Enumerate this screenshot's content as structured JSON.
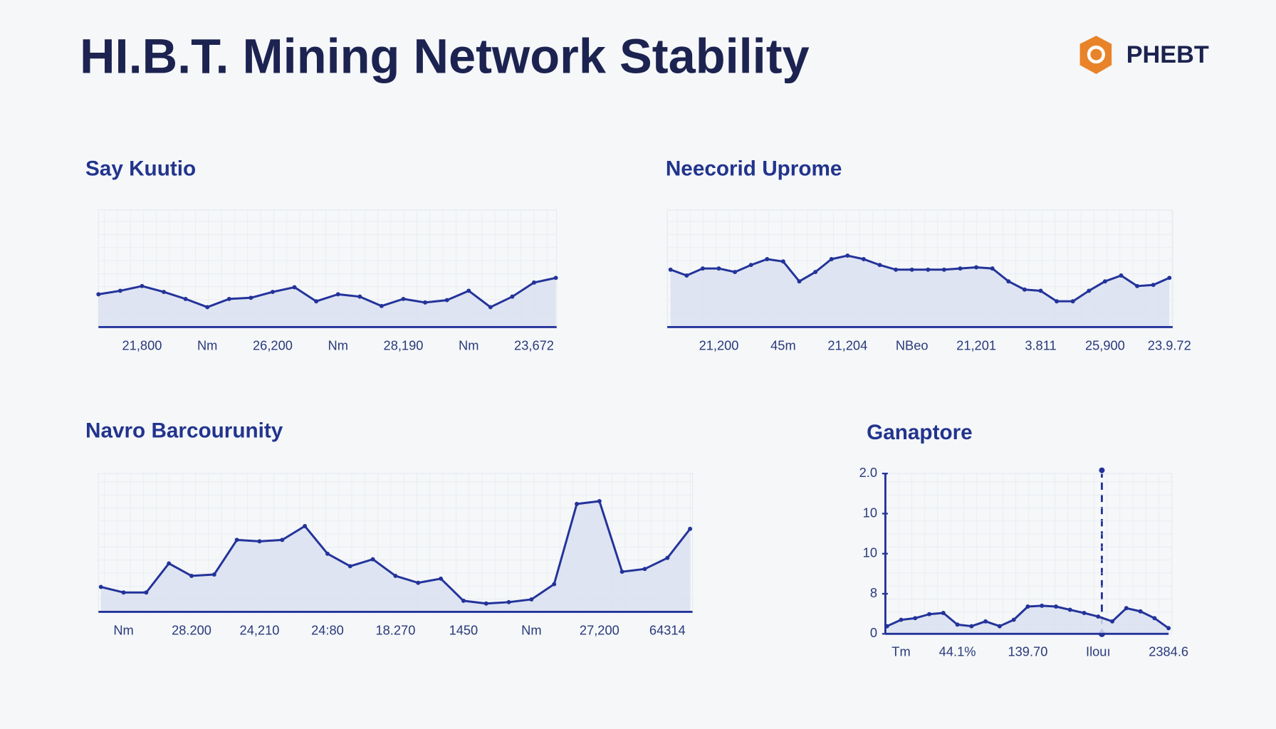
{
  "header": {
    "title": "HI.B.T. Mining Network Stability",
    "logo": "PHEBT"
  },
  "chart_data": [
    {
      "type": "area",
      "title": "Say Kuutio",
      "color": "#23339a",
      "grid": true,
      "ylim": [
        0,
        100
      ],
      "categories": [
        null,
        null,
        "21,800",
        null,
        null,
        "Nm",
        null,
        null,
        "26,200",
        null,
        null,
        "Nm",
        null,
        null,
        "28,190",
        null,
        null,
        "Nm",
        null,
        null,
        "23,672",
        null
      ],
      "values": [
        28,
        31,
        35,
        30,
        24,
        17,
        24,
        25,
        30,
        34,
        22,
        28,
        26,
        18,
        24,
        21,
        23,
        31,
        17,
        26,
        38,
        42
      ]
    },
    {
      "type": "area",
      "title": "Neecorid Uprome",
      "color": "#23339a",
      "grid": true,
      "ylim": [
        0,
        100
      ],
      "categories": [
        null,
        null,
        null,
        "21,200",
        null,
        null,
        null,
        "45m",
        null,
        null,
        null,
        "21,204",
        null,
        null,
        null,
        "NBeo",
        null,
        null,
        null,
        "21,201",
        null,
        null,
        null,
        "3.811",
        null,
        null,
        null,
        "25,900",
        null,
        null,
        null,
        "23.9.72"
      ],
      "values": [
        49,
        44,
        50,
        50,
        47,
        53,
        58,
        56,
        39,
        47,
        58,
        61,
        58,
        53,
        49,
        49,
        49,
        49,
        50,
        51,
        50,
        39,
        32,
        31,
        22,
        22,
        31,
        39,
        44,
        35,
        36,
        42
      ]
    },
    {
      "type": "area",
      "title": "Navro Barcourunity",
      "color": "#23339a",
      "grid": true,
      "ylim": [
        0,
        100
      ],
      "categories": [
        null,
        "Nm",
        null,
        null,
        "28.200",
        null,
        null,
        "24,210",
        null,
        null,
        "24:80",
        null,
        null,
        "18.270",
        null,
        null,
        "1450",
        null,
        null,
        "Nm",
        null,
        null,
        "27,200",
        null,
        null,
        "64314",
        null
      ],
      "values": [
        18,
        14,
        14,
        35,
        26,
        27,
        52,
        51,
        52,
        62,
        42,
        33,
        38,
        26,
        21,
        24,
        8,
        6,
        7,
        9,
        20,
        78,
        80,
        29,
        31,
        39,
        60
      ]
    },
    {
      "type": "area",
      "title": "Ganaptore",
      "color": "#23339a",
      "grid": true,
      "ylim": [
        0,
        4
      ],
      "yticks": [
        0,
        {
          "value": 1,
          "label": "8"
        },
        {
          "value": 2,
          "label": "10"
        },
        {
          "value": 3,
          "label": "10"
        },
        {
          "value": 4,
          "label": "2.0"
        }
      ],
      "categories": [
        null,
        "Tm",
        null,
        null,
        null,
        "44.1%",
        null,
        null,
        null,
        null,
        "139.70",
        null,
        null,
        null,
        null,
        "Ilouı",
        null,
        null,
        null,
        null,
        "2384.6"
      ],
      "values": [
        0.19,
        0.35,
        0.39,
        0.49,
        0.52,
        0.23,
        0.19,
        0.31,
        0.19,
        0.35,
        0.68,
        0.7,
        0.68,
        0.6,
        0.52,
        0.43,
        0.31,
        0.64,
        0.56,
        0.39,
        0.14
      ]
    }
  ]
}
